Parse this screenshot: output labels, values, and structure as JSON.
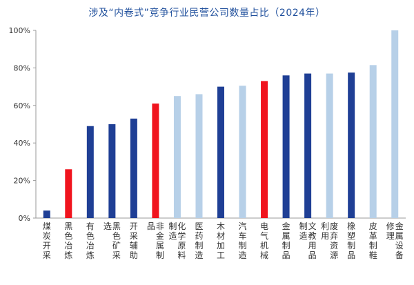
{
  "chart_data": {
    "type": "bar",
    "title": "涉及“内卷式”竞争行业民营公司数量占比（2024年）",
    "categories": [
      "煤炭开采",
      "黑色冶炼",
      "有色冶炼",
      "黑色矿采选",
      "开采辅助",
      "非金属制品",
      "化学原料制造",
      "医药制造",
      "木材加工",
      "汽车制造",
      "电气机械",
      "金属制品",
      "文教用品制造",
      "废弃资源利用",
      "橡塑制品",
      "皮革制鞋",
      "金属设备修理"
    ],
    "values": [
      4,
      26,
      49,
      50,
      53,
      61,
      65,
      66,
      70,
      70.5,
      73,
      76,
      77,
      77,
      77.5,
      81.5,
      100
    ],
    "bar_colors": [
      "#1f3f95",
      "#f0141e",
      "#1f3f95",
      "#1f3f95",
      "#1f3f95",
      "#f0141e",
      "#b7d0e8",
      "#b7d0e8",
      "#1f3f95",
      "#b7d0e8",
      "#f0141e",
      "#1f3f95",
      "#1f3f95",
      "#b7d0e8",
      "#1f3f95",
      "#b7d0e8",
      "#b7d0e8"
    ],
    "ylim": [
      0,
      100
    ],
    "yticks": [
      0,
      20,
      40,
      60,
      80,
      100
    ],
    "ytick_labels": [
      "0%",
      "20%",
      "40%",
      "60%",
      "80%",
      "100%"
    ],
    "xlabel": "",
    "ylabel": "",
    "grid": false,
    "legend": "none"
  }
}
